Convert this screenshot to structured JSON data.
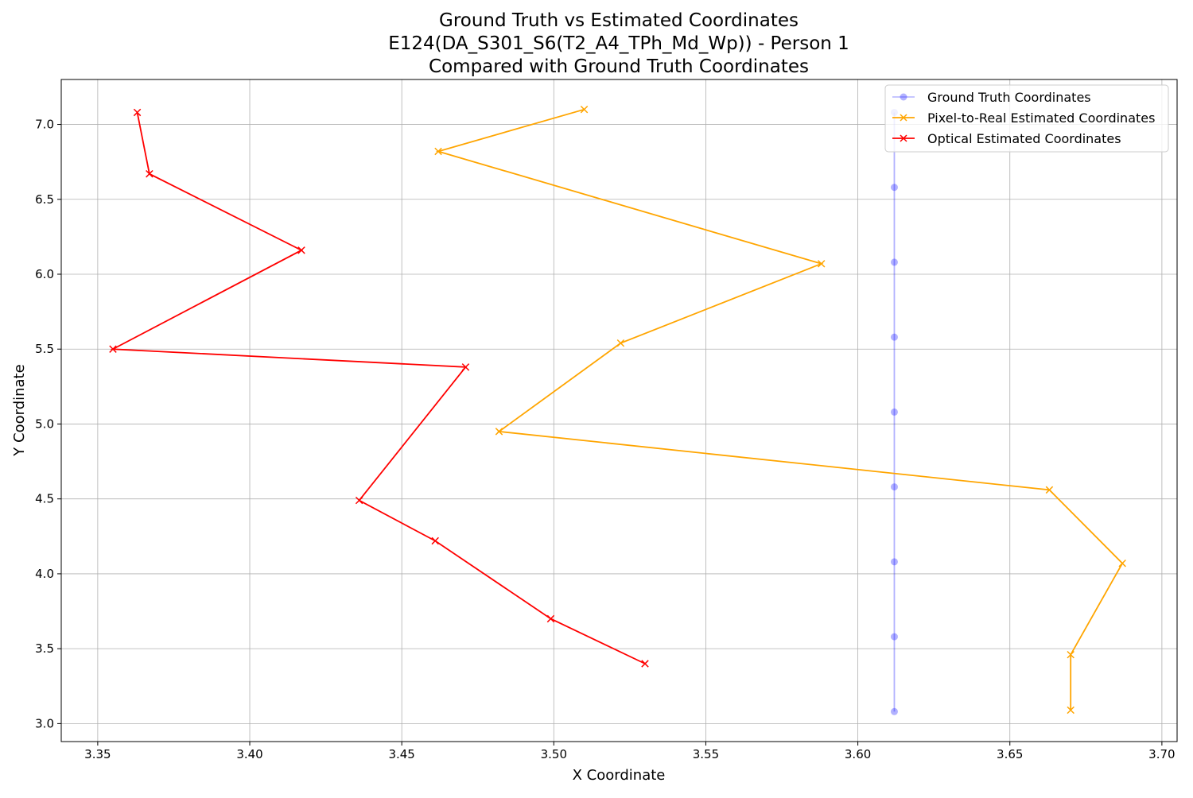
{
  "chart_data": {
    "type": "line",
    "title": "Ground Truth vs Estimated Coordinates",
    "subtitle_lines": [
      "E124(DA_S301_S6(T2_A4_TPh_Md_Wp)) - Person 1",
      "Compared with Ground Truth Coordinates"
    ],
    "xlabel": "X Coordinate",
    "ylabel": "Y Coordinate",
    "xlim": [
      3.338,
      3.705
    ],
    "ylim": [
      2.88,
      7.3
    ],
    "xticks": [
      3.35,
      3.4,
      3.45,
      3.5,
      3.55,
      3.6,
      3.65,
      3.7
    ],
    "xtick_labels": [
      "3.35",
      "3.40",
      "3.45",
      "3.50",
      "3.55",
      "3.60",
      "3.65",
      "3.70"
    ],
    "yticks": [
      3.0,
      3.5,
      4.0,
      4.5,
      5.0,
      5.5,
      6.0,
      6.5,
      7.0
    ],
    "ytick_labels": [
      "3.0",
      "3.5",
      "4.0",
      "4.5",
      "5.0",
      "5.5",
      "6.0",
      "6.5",
      "7.0"
    ],
    "grid": true,
    "legend_position": "top-right",
    "series": [
      {
        "name": "Ground Truth Coordinates",
        "color": "#0000ff",
        "marker": "circle",
        "alpha": 0.3,
        "x": [
          3.612,
          3.612,
          3.612,
          3.612,
          3.612,
          3.612,
          3.612,
          3.612,
          3.612
        ],
        "y": [
          7.08,
          6.58,
          6.08,
          5.58,
          5.08,
          4.58,
          4.08,
          3.58,
          3.08
        ]
      },
      {
        "name": "Pixel-to-Real Estimated Coordinates",
        "color": "#ffa500",
        "marker": "x",
        "alpha": 1,
        "x": [
          3.51,
          3.462,
          3.588,
          3.522,
          3.482,
          3.663,
          3.687,
          3.67,
          3.67
        ],
        "y": [
          7.1,
          6.82,
          6.07,
          5.54,
          4.95,
          4.56,
          4.07,
          3.46,
          3.09
        ]
      },
      {
        "name": "Optical Estimated Coordinates",
        "color": "#ff0000",
        "marker": "x",
        "alpha": 1,
        "x": [
          3.363,
          3.367,
          3.417,
          3.355,
          3.471,
          3.436,
          3.461,
          3.499,
          3.53
        ],
        "y": [
          7.08,
          6.67,
          6.16,
          5.5,
          5.38,
          4.49,
          4.22,
          3.7,
          3.4
        ]
      }
    ]
  }
}
